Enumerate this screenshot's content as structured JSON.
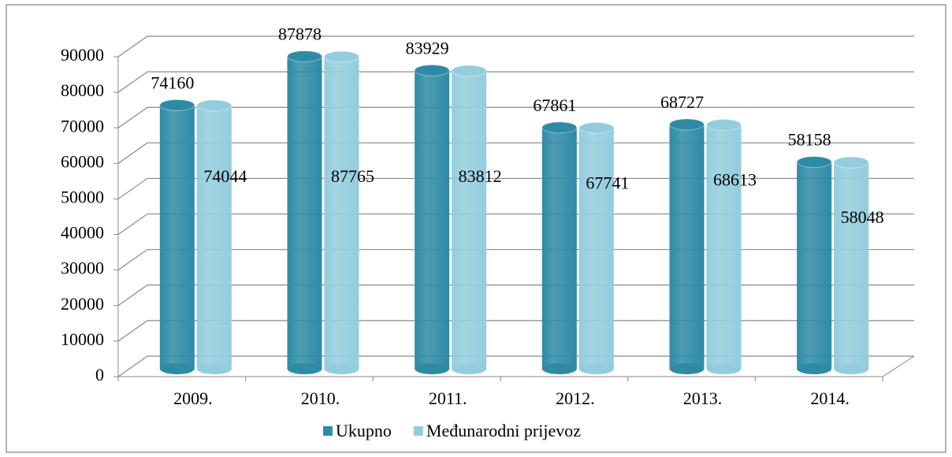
{
  "chart_data": {
    "type": "bar",
    "categories": [
      "2009.",
      "2010.",
      "2011.",
      "2012.",
      "2013.",
      "2014."
    ],
    "series": [
      {
        "name": "Ukupno",
        "color": "#2e8ba6",
        "values": [
          74160,
          87878,
          83929,
          67861,
          68727,
          58158
        ]
      },
      {
        "name": "Međunarodni prijevoz",
        "color": "#93cddd",
        "values": [
          74044,
          87765,
          83812,
          67741,
          68613,
          58048
        ]
      }
    ],
    "ylim": [
      0,
      90000
    ],
    "yticks": [
      0,
      10000,
      20000,
      30000,
      40000,
      50000,
      60000,
      70000,
      80000,
      90000
    ],
    "grid": true,
    "legend": "bottom"
  }
}
